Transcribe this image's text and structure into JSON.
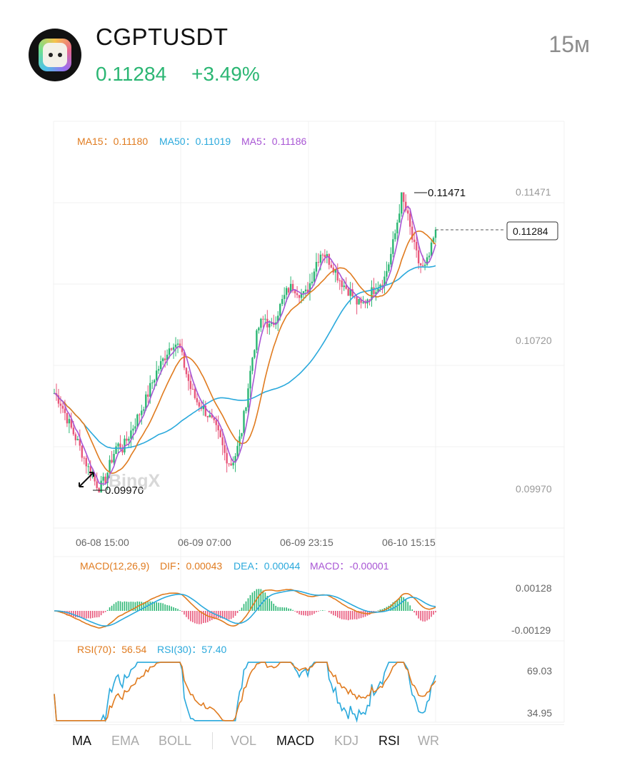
{
  "header": {
    "pair": "CGPTUSDT",
    "price": "0.11284",
    "change": "+3.49%",
    "interval": "15м"
  },
  "ma_legend": {
    "ma15": "MA15：0.11180",
    "ma50": "MA50：0.11019",
    "ma5": "MA5：0.11186"
  },
  "price_axis": [
    "0.11471",
    "0.10720",
    "0.09970"
  ],
  "time_axis": [
    "06-08 15:00",
    "06-09 07:00",
    "06-09 23:15",
    "06-10 15:15"
  ],
  "markers": {
    "high": "0.11471",
    "low": "0.09970",
    "current": "0.11284"
  },
  "watermark": "BingX",
  "macd": {
    "title": "MACD(12,26,9)",
    "dif": "DIF：0.00043",
    "dea": "DEA：0.00044",
    "macd": "MACD：-0.00001",
    "axis_top": "0.00128",
    "axis_bottom": "-0.00129"
  },
  "rsi": {
    "rsi70": "RSI(70)：56.54",
    "rsi30": "RSI(30)：57.40",
    "axis_top": "69.03",
    "axis_bottom": "34.95"
  },
  "tabs": [
    {
      "label": "MA",
      "active": true
    },
    {
      "label": "EMA",
      "active": false
    },
    {
      "label": "BOLL",
      "active": false
    },
    {
      "label": "VOL",
      "active": false
    },
    {
      "label": "MACD",
      "active": true
    },
    {
      "label": "KDJ",
      "active": false
    },
    {
      "label": "RSI",
      "active": true
    },
    {
      "label": "WR",
      "active": false
    }
  ],
  "colors": {
    "up": "#2bb673",
    "down": "#e8567a",
    "ma15": "#e07b1f",
    "ma50": "#2aa9dc",
    "ma5": "#a855d4"
  },
  "chart_data": {
    "type": "candlestick",
    "close_series": [
      0.1046,
      0.1042,
      0.1035,
      0.1028,
      0.1022,
      0.1015,
      0.1008,
      0.1002,
      0.0998,
      0.1003,
      0.1012,
      0.102,
      0.1018,
      0.1024,
      0.103,
      0.1036,
      0.1042,
      0.105,
      0.1057,
      0.1062,
      0.1068,
      0.1072,
      0.1069,
      0.1058,
      0.1048,
      0.1042,
      0.1039,
      0.1035,
      0.103,
      0.1024,
      0.1015,
      0.101,
      0.1016,
      0.1028,
      0.1048,
      0.1068,
      0.108,
      0.1084,
      0.1078,
      0.1085,
      0.1092,
      0.1098,
      0.11,
      0.1097,
      0.1095,
      0.1102,
      0.1112,
      0.1118,
      0.1114,
      0.111,
      0.1104,
      0.11,
      0.1097,
      0.1092,
      0.109,
      0.1094,
      0.1098,
      0.1101,
      0.1104,
      0.1114,
      0.1128,
      0.1145,
      0.1136,
      0.1122,
      0.1112,
      0.1108,
      0.1116,
      0.1128
    ],
    "high": 0.11471,
    "low": 0.0997,
    "last": 0.11284
  }
}
